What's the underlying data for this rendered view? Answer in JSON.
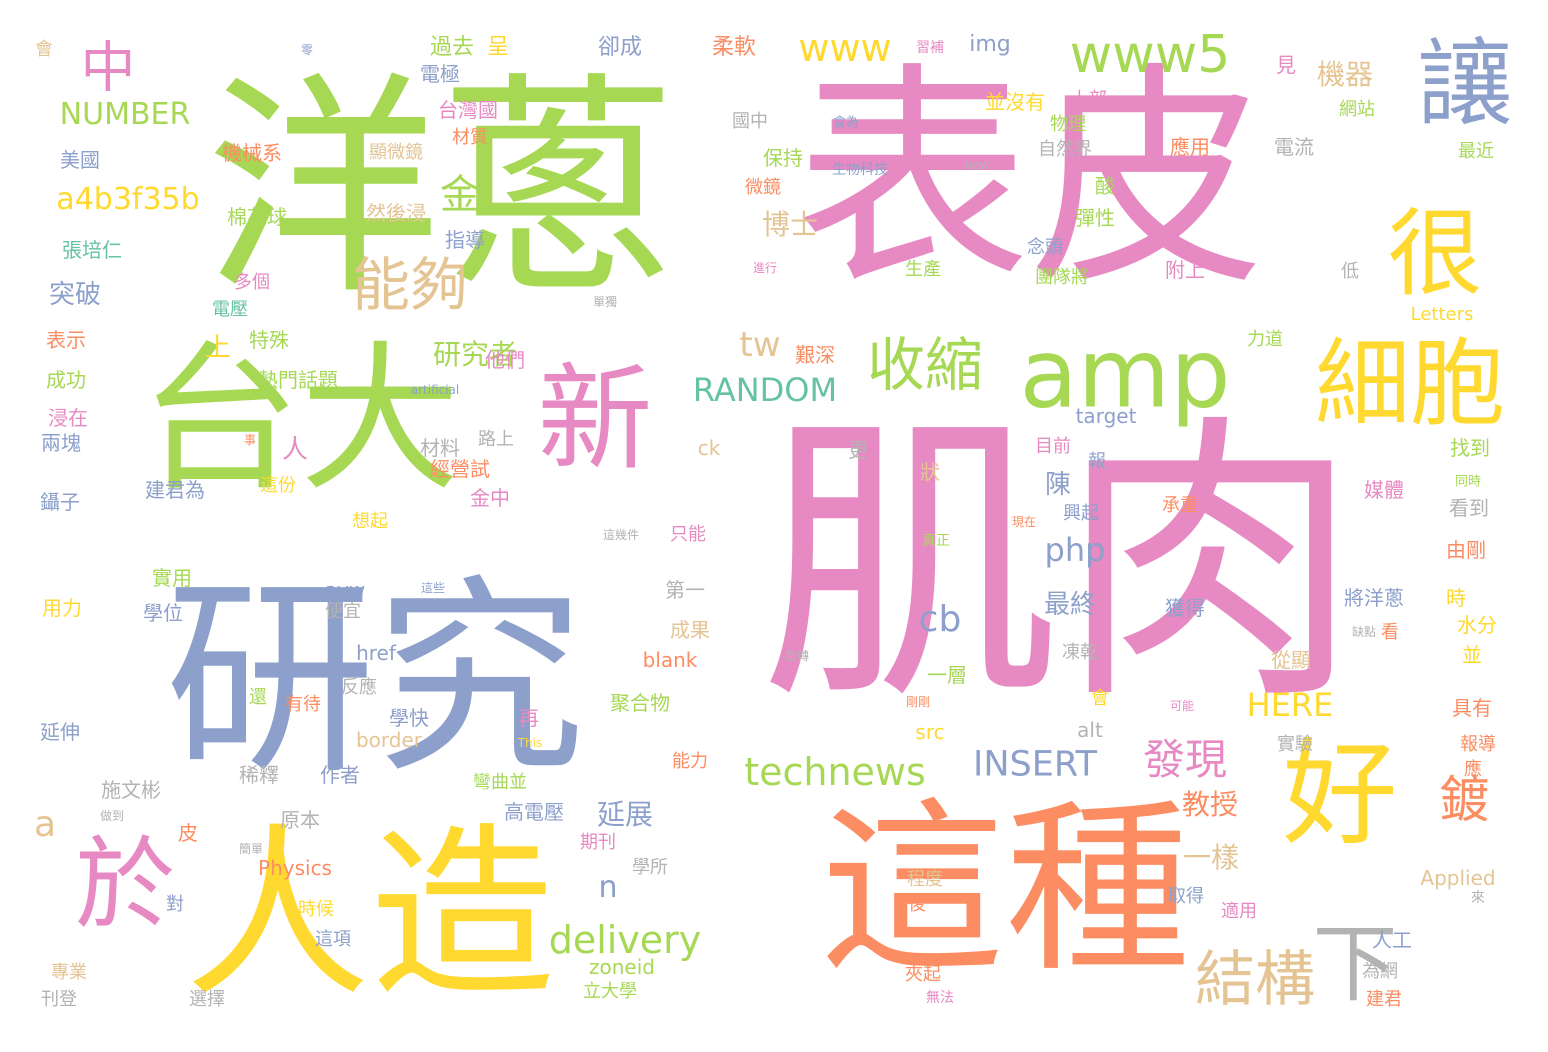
{
  "palette": {
    "green": "#a6d854",
    "pink": "#e78ac3",
    "blue": "#8da0cb",
    "yellow": "#ffd92f",
    "orange": "#fc8d62",
    "gray": "#b3b3b3",
    "tan": "#e5c494",
    "teal": "#66c2a5"
  },
  "words": [
    {
      "text": "肌肉",
      "color": "pink"
    },
    {
      "text": "表皮",
      "color": "pink"
    },
    {
      "text": "洋蔥",
      "color": "green"
    },
    {
      "text": "研究",
      "color": "blue"
    },
    {
      "text": "這種",
      "color": "orange"
    },
    {
      "text": "人造",
      "color": "yellow"
    },
    {
      "text": "台大",
      "color": "green"
    },
    {
      "text": "新",
      "color": "pink"
    },
    {
      "text": "amp",
      "color": "green"
    },
    {
      "text": "讓",
      "color": "blue"
    },
    {
      "text": "很",
      "color": "yellow"
    },
    {
      "text": "細胞",
      "color": "yellow"
    },
    {
      "text": "好",
      "color": "yellow"
    },
    {
      "text": "於",
      "color": "pink"
    },
    {
      "text": "下",
      "color": "gray"
    },
    {
      "text": "中",
      "color": "pink"
    },
    {
      "text": "www5",
      "color": "green"
    },
    {
      "text": "www",
      "color": "yellow"
    },
    {
      "text": "收縮",
      "color": "green"
    },
    {
      "text": "能夠",
      "color": "tan"
    },
    {
      "text": "a4b3f35b",
      "color": "yellow"
    },
    {
      "text": "金",
      "color": "green"
    },
    {
      "text": "結構",
      "color": "tan"
    },
    {
      "text": "technews",
      "color": "green"
    },
    {
      "text": "delivery",
      "color": "green"
    },
    {
      "text": "發現",
      "color": "pink"
    },
    {
      "text": "鍍",
      "color": "orange"
    },
    {
      "text": "php",
      "color": "blue"
    },
    {
      "text": "RANDOM",
      "color": "teal"
    },
    {
      "text": "INSERT",
      "color": "blue"
    },
    {
      "text": "HERE",
      "color": "yellow"
    },
    {
      "text": "NUMBER",
      "color": "green"
    },
    {
      "text": "機器",
      "color": "tan"
    },
    {
      "text": "tw",
      "color": "tan"
    },
    {
      "text": "cb",
      "color": "blue"
    },
    {
      "text": "a",
      "color": "tan"
    },
    {
      "text": "研究者",
      "color": "green"
    },
    {
      "text": "博士",
      "color": "tan"
    },
    {
      "text": "突破",
      "color": "blue"
    },
    {
      "text": "上",
      "color": "yellow"
    },
    {
      "text": "教授",
      "color": "orange"
    },
    {
      "text": "一樣",
      "color": "tan"
    },
    {
      "text": "最終",
      "color": "blue"
    },
    {
      "text": "延展",
      "color": "blue"
    },
    {
      "text": "n",
      "color": "blue"
    },
    {
      "text": "陳",
      "color": "blue"
    },
    {
      "text": "人",
      "color": "pink"
    },
    {
      "text": "過去",
      "color": "green"
    },
    {
      "text": "呈",
      "color": "yellow"
    },
    {
      "text": "卻成",
      "color": "blue"
    },
    {
      "text": "柔軟",
      "color": "orange"
    },
    {
      "text": "img",
      "color": "blue"
    },
    {
      "text": "電極",
      "color": "blue"
    },
    {
      "text": "並沒有",
      "color": "yellow"
    },
    {
      "text": "見",
      "color": "pink"
    },
    {
      "text": "網站",
      "color": "green"
    },
    {
      "text": "台灣國",
      "color": "pink"
    },
    {
      "text": "材質",
      "color": "orange"
    },
    {
      "text": "國中",
      "color": "gray"
    },
    {
      "text": "上部",
      "color": "pink"
    },
    {
      "text": "物理",
      "color": "green"
    },
    {
      "text": "自然界",
      "color": "gray"
    },
    {
      "text": "應用",
      "color": "orange"
    },
    {
      "text": "電流",
      "color": "gray"
    },
    {
      "text": "最近",
      "color": "green"
    },
    {
      "text": "美國",
      "color": "blue"
    },
    {
      "text": "機械系",
      "color": "orange"
    },
    {
      "text": "顯微鏡",
      "color": "tan"
    },
    {
      "text": "保持",
      "color": "green"
    },
    {
      "text": "微鏡",
      "color": "orange"
    },
    {
      "text": "酸",
      "color": "green"
    },
    {
      "text": "彈性",
      "color": "green"
    },
    {
      "text": "棉花球",
      "color": "green"
    },
    {
      "text": "然後浸",
      "color": "tan"
    },
    {
      "text": "指導",
      "color": "blue"
    },
    {
      "text": "念頭",
      "color": "blue"
    },
    {
      "text": "張培仁",
      "color": "teal"
    },
    {
      "text": "多個",
      "color": "pink"
    },
    {
      "text": "生產",
      "color": "green"
    },
    {
      "text": "團隊將",
      "color": "green"
    },
    {
      "text": "附上",
      "color": "pink"
    },
    {
      "text": "低",
      "color": "gray"
    },
    {
      "text": "電壓",
      "color": "teal"
    },
    {
      "text": "表示",
      "color": "orange"
    },
    {
      "text": "特殊",
      "color": "green"
    },
    {
      "text": "力道",
      "color": "green"
    },
    {
      "text": "Letters",
      "color": "yellow"
    },
    {
      "text": "成功",
      "color": "green"
    },
    {
      "text": "熱門話題",
      "color": "green"
    },
    {
      "text": "他們",
      "color": "pink"
    },
    {
      "text": "艱深",
      "color": "orange"
    },
    {
      "text": "target",
      "color": "blue"
    },
    {
      "text": "浸在",
      "color": "pink"
    },
    {
      "text": "兩塊",
      "color": "blue"
    },
    {
      "text": "材料",
      "color": "gray"
    },
    {
      "text": "路上",
      "color": "gray"
    },
    {
      "text": "ck",
      "color": "tan"
    },
    {
      "text": "更",
      "color": "gray"
    },
    {
      "text": "狀",
      "color": "tan"
    },
    {
      "text": "目前",
      "color": "pink"
    },
    {
      "text": "報",
      "color": "blue"
    },
    {
      "text": "找到",
      "color": "green"
    },
    {
      "text": "經營試",
      "color": "orange"
    },
    {
      "text": "建君為",
      "color": "blue"
    },
    {
      "text": "這份",
      "color": "yellow"
    },
    {
      "text": "金中",
      "color": "pink"
    },
    {
      "text": "興起",
      "color": "blue"
    },
    {
      "text": "媒體",
      "color": "pink"
    },
    {
      "text": "鑷子",
      "color": "blue"
    },
    {
      "text": "想起",
      "color": "yellow"
    },
    {
      "text": "承重",
      "color": "orange"
    },
    {
      "text": "看到",
      "color": "gray"
    },
    {
      "text": "只能",
      "color": "pink"
    },
    {
      "text": "由剛",
      "color": "orange"
    },
    {
      "text": "第一",
      "color": "gray"
    },
    {
      "text": "實用",
      "color": "green"
    },
    {
      "text": "學位",
      "color": "blue"
    },
    {
      "text": "用力",
      "color": "yellow"
    },
    {
      "text": "avw",
      "color": "blue"
    },
    {
      "text": "便宜",
      "color": "gray"
    },
    {
      "text": "成果",
      "color": "tan"
    },
    {
      "text": "獲得",
      "color": "blue"
    },
    {
      "text": "將洋蔥",
      "color": "blue"
    },
    {
      "text": "時",
      "color": "yellow"
    },
    {
      "text": "水分",
      "color": "yellow"
    },
    {
      "text": "看",
      "color": "orange"
    },
    {
      "text": "並",
      "color": "yellow"
    },
    {
      "text": "href",
      "color": "blue"
    },
    {
      "text": "blank",
      "color": "orange"
    },
    {
      "text": "凍乾",
      "color": "gray"
    },
    {
      "text": "反應",
      "color": "gray"
    },
    {
      "text": "從顯",
      "color": "tan"
    },
    {
      "text": "一層",
      "color": "green"
    },
    {
      "text": "還",
      "color": "green"
    },
    {
      "text": "聚合物",
      "color": "green"
    },
    {
      "text": "有待",
      "color": "orange"
    },
    {
      "text": "學快",
      "color": "blue"
    },
    {
      "text": "再",
      "color": "pink"
    },
    {
      "text": "alt",
      "color": "gray"
    },
    {
      "text": "會",
      "color": "yellow"
    },
    {
      "text": "具有",
      "color": "orange"
    },
    {
      "text": "延伸",
      "color": "blue"
    },
    {
      "text": "border",
      "color": "tan"
    },
    {
      "text": "src",
      "color": "yellow"
    },
    {
      "text": "實驗",
      "color": "gray"
    },
    {
      "text": "報導",
      "color": "orange"
    },
    {
      "text": "稀釋",
      "color": "gray"
    },
    {
      "text": "作者",
      "color": "blue"
    },
    {
      "text": "彎曲並",
      "color": "green"
    },
    {
      "text": "能力",
      "color": "orange"
    },
    {
      "text": "應",
      "color": "orange"
    },
    {
      "text": "施文彬",
      "color": "gray"
    },
    {
      "text": "原本",
      "color": "gray"
    },
    {
      "text": "高電壓",
      "color": "blue"
    },
    {
      "text": "皮",
      "color": "orange"
    },
    {
      "text": "期刊",
      "color": "pink"
    },
    {
      "text": "學所",
      "color": "gray"
    },
    {
      "text": "Physics",
      "color": "orange"
    },
    {
      "text": "程度",
      "color": "tan"
    },
    {
      "text": "Applied",
      "color": "tan"
    },
    {
      "text": "對",
      "color": "blue"
    },
    {
      "text": "取得",
      "color": "blue"
    },
    {
      "text": "適用",
      "color": "pink"
    },
    {
      "text": "時候",
      "color": "yellow"
    },
    {
      "text": "後",
      "color": "orange"
    },
    {
      "text": "人工",
      "color": "blue"
    },
    {
      "text": "這項",
      "color": "blue"
    },
    {
      "text": "zoneid",
      "color": "green"
    },
    {
      "text": "為網",
      "color": "gray"
    },
    {
      "text": "專業",
      "color": "tan"
    },
    {
      "text": "夾起",
      "color": "orange"
    },
    {
      "text": "立大學",
      "color": "green"
    },
    {
      "text": "刊登",
      "color": "gray"
    },
    {
      "text": "選擇",
      "color": "gray"
    },
    {
      "text": "無法",
      "color": "pink"
    },
    {
      "text": "建君",
      "color": "orange"
    },
    {
      "text": "會",
      "color": "tan"
    },
    {
      "text": "零",
      "color": "blue"
    },
    {
      "text": "習補",
      "color": "pink"
    },
    {
      "text": "會為",
      "color": "blue"
    },
    {
      "text": "生物科技",
      "color": "blue"
    },
    {
      "text": "new",
      "color": "gray"
    },
    {
      "text": "進行",
      "color": "pink"
    },
    {
      "text": "單獨",
      "color": "gray"
    },
    {
      "text": "artificial",
      "color": "blue"
    },
    {
      "text": "事",
      "color": "orange"
    },
    {
      "text": "同時",
      "color": "green"
    },
    {
      "text": "現在",
      "color": "orange"
    },
    {
      "text": "這幾件",
      "color": "gray"
    },
    {
      "text": "真正",
      "color": "green"
    },
    {
      "text": "這些",
      "color": "blue"
    },
    {
      "text": "缺點",
      "color": "gray"
    },
    {
      "text": "旋轉",
      "color": "gray"
    },
    {
      "text": "剛剛",
      "color": "orange"
    },
    {
      "text": "可能",
      "color": "pink"
    },
    {
      "text": "This",
      "color": "yellow"
    },
    {
      "text": "做到",
      "color": "gray"
    },
    {
      "text": "簡單",
      "color": "gray"
    },
    {
      "text": "來",
      "color": "gray"
    }
  ]
}
